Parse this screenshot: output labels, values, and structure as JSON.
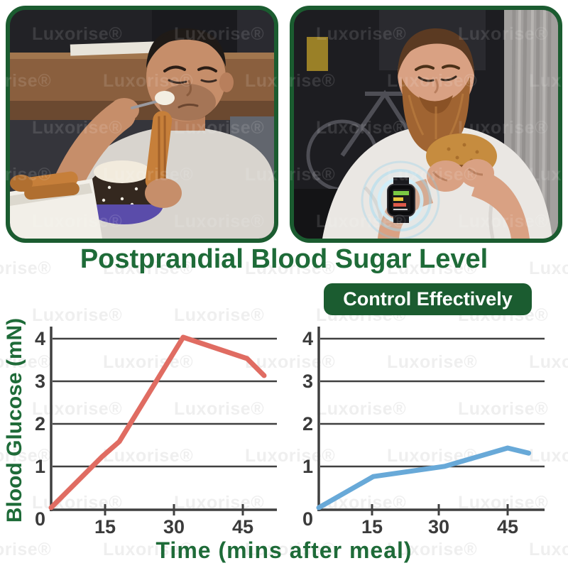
{
  "page": {
    "title": "Postprandial Blood Sugar Level",
    "badge_label": "Control Effectively",
    "watermark_text": "Luxorise®",
    "colors": {
      "brand_green": "#1e6b38",
      "badge_bg": "#1b5c30",
      "photo_border": "#1b5c30",
      "axis_gray": "#404040",
      "red_line": "#e06c62",
      "blue_line": "#68a9d8"
    }
  },
  "chart_data": [
    {
      "type": "line",
      "position": "left",
      "series": [
        {
          "name": "red-line",
          "color": "#e06c62",
          "points": [
            [
              0,
              0.05
            ],
            [
              12,
              1.25
            ],
            [
              16,
              1.6
            ],
            [
              31,
              4.05
            ],
            [
              46,
              3.55
            ],
            [
              50,
              3.15
            ]
          ]
        }
      ],
      "xticks": [
        0,
        15,
        30,
        45
      ],
      "yticks": [
        0,
        1,
        2,
        3,
        4
      ],
      "xlim": [
        0,
        50
      ],
      "ylim": [
        0,
        4.3
      ],
      "xlabel": "Time (mins after meal)",
      "ylabel": "Blood Glucose (mN)",
      "grid": "horizontal",
      "legend": "none"
    },
    {
      "type": "line",
      "position": "right",
      "series": [
        {
          "name": "blue-line",
          "color": "#68a9d8",
          "points": [
            [
              0,
              0.05
            ],
            [
              13,
              0.78
            ],
            [
              30,
              1.02
            ],
            [
              45,
              1.45
            ],
            [
              50,
              1.33
            ]
          ]
        }
      ],
      "xticks": [
        0,
        15,
        30,
        45
      ],
      "yticks": [
        0,
        1,
        2,
        3,
        4
      ],
      "xlim": [
        0,
        50
      ],
      "ylim": [
        0,
        4.3
      ],
      "xlabel": "Time (mins after meal)",
      "ylabel": "Blood Glucose (mN)",
      "grid": "horizontal",
      "legend": "none"
    }
  ]
}
